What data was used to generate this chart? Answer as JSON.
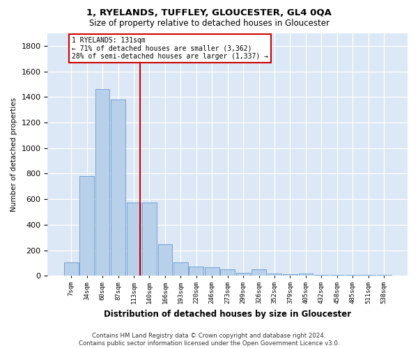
{
  "title1": "1, RYELANDS, TUFFLEY, GLOUCESTER, GL4 0QA",
  "title2": "Size of property relative to detached houses in Gloucester",
  "xlabel": "Distribution of detached houses by size in Gloucester",
  "ylabel": "Number of detached properties",
  "categories": [
    "7sqm",
    "34sqm",
    "60sqm",
    "87sqm",
    "113sqm",
    "140sqm",
    "166sqm",
    "193sqm",
    "220sqm",
    "246sqm",
    "273sqm",
    "299sqm",
    "326sqm",
    "352sqm",
    "379sqm",
    "405sqm",
    "432sqm",
    "458sqm",
    "485sqm",
    "511sqm",
    "538sqm"
  ],
  "bar_heights": [
    105,
    780,
    1460,
    1380,
    575,
    575,
    245,
    105,
    75,
    65,
    50,
    25,
    50,
    20,
    10,
    20,
    5,
    5,
    5,
    5,
    5
  ],
  "bar_color": "#b8d0ea",
  "bar_edge_color": "#6699cc",
  "background_color": "#dce8f5",
  "grid_color": "#ffffff",
  "vline_color": "#cc0000",
  "vline_pos": 4.42,
  "annotation_text": "1 RYELANDS: 131sqm\n← 71% of detached houses are smaller (3,362)\n28% of semi-detached houses are larger (1,337) →",
  "annotation_box_color": "#ffffff",
  "annotation_box_edge": "#cc0000",
  "ylim": [
    0,
    1900
  ],
  "yticks": [
    0,
    200,
    400,
    600,
    800,
    1000,
    1200,
    1400,
    1600,
    1800
  ],
  "footer1": "Contains HM Land Registry data © Crown copyright and database right 2024.",
  "footer2": "Contains public sector information licensed under the Open Government Licence v3.0."
}
